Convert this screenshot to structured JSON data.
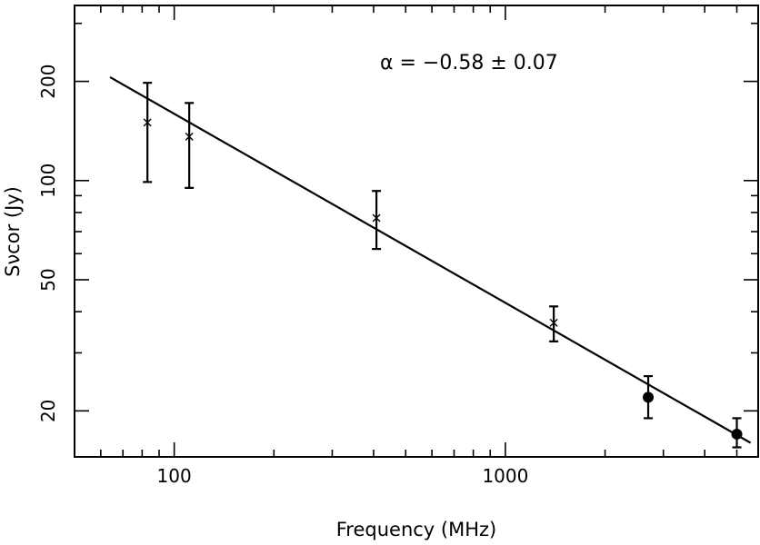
{
  "chart_data": {
    "type": "scatter",
    "x_scale": "log",
    "y_scale": "log",
    "xlabel": "Frequency (MHz)",
    "ylabel": "Sνcor (Jy)",
    "xlim": [
      50,
      5800
    ],
    "ylim": [
      14.5,
      340
    ],
    "x_ticks": [
      100,
      1000
    ],
    "y_ticks": [
      20,
      50,
      100,
      200
    ],
    "annotation": "α = −0.58 ± 0.07",
    "fit_line": {
      "x": [
        64,
        5500
      ],
      "y": [
        206,
        16
      ]
    },
    "series": [
      {
        "marker": "cross",
        "points": [
          {
            "x": 83,
            "y": 150,
            "err_low": 99,
            "err_high": 198
          },
          {
            "x": 111,
            "y": 136,
            "err_low": 95,
            "err_high": 172
          },
          {
            "x": 408,
            "y": 77,
            "err_low": 62,
            "err_high": 93
          },
          {
            "x": 1400,
            "y": 37,
            "err_low": 32.5,
            "err_high": 41.5
          }
        ]
      },
      {
        "marker": "filled-circle",
        "points": [
          {
            "x": 2700,
            "y": 22,
            "err_low": 19,
            "err_high": 25.5
          },
          {
            "x": 5000,
            "y": 17,
            "err_low": 15.5,
            "err_high": 19
          }
        ]
      }
    ],
    "grid": false
  }
}
